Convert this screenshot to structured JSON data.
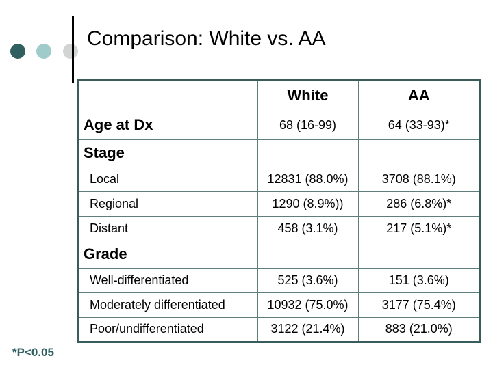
{
  "slide": {
    "title": "Comparison: White vs. AA",
    "footnote": "*P<0.05"
  },
  "table": {
    "columns": [
      "",
      "White",
      "AA"
    ],
    "rows": [
      {
        "type": "section-with-data",
        "label": "Age at Dx",
        "white": "68 (16-99)",
        "aa": "64 (33-93)*"
      },
      {
        "type": "section",
        "label": "Stage",
        "white": "",
        "aa": ""
      },
      {
        "type": "data",
        "label": "Local",
        "white": "12831 (88.0%)",
        "aa": "3708 (88.1%)"
      },
      {
        "type": "data",
        "label": "Regional",
        "white": "1290 (8.9%))",
        "aa": "286 (6.8%)*"
      },
      {
        "type": "data",
        "label": "Distant",
        "white": "458 (3.1%)",
        "aa": "217 (5.1%)*"
      },
      {
        "type": "section",
        "label": "Grade",
        "white": "",
        "aa": ""
      },
      {
        "type": "data",
        "label": "Well-differentiated",
        "white": "525 (3.6%)",
        "aa": "151 (3.6%)"
      },
      {
        "type": "data",
        "label": "Moderately differentiated",
        "white": "10932 (75.0%)",
        "aa": "3177 (75.4%)"
      },
      {
        "type": "data",
        "label": "Poor/undifferentiated",
        "white": "3122 (21.4%)",
        "aa": "883 (21.0%)"
      }
    ]
  },
  "colors": {
    "dot-dark": "#2f5f5e",
    "dot-light": "#9fcbca",
    "dot-gray": "#d2d4d4",
    "table-border": "#3a5c5c",
    "table-grid": "#5f7d7d",
    "footnote": "#2f6060",
    "text": "#000000"
  }
}
